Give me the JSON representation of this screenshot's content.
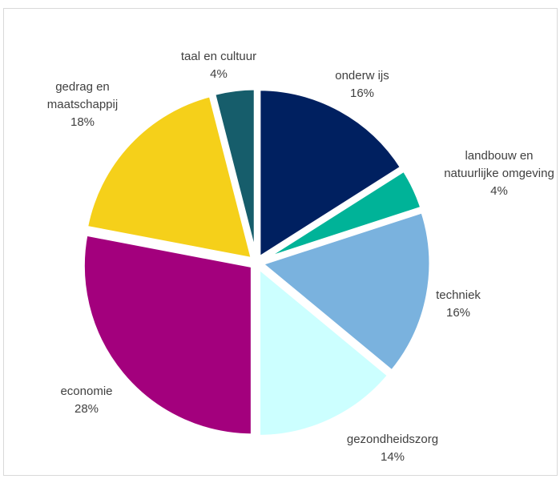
{
  "chart_data": {
    "type": "pie",
    "title": "",
    "slices": [
      {
        "name": "onderw ijs",
        "value": 16,
        "value_label": "16%",
        "color": "#002060"
      },
      {
        "name": "landbouw  en natuurlijke omgeving",
        "name_lines": [
          "landbouw  en",
          "natuurlijke omgeving"
        ],
        "value": 4,
        "value_label": "4%",
        "color": "#00b398"
      },
      {
        "name": "techniek",
        "value": 16,
        "value_label": "16%",
        "color": "#7ab2de"
      },
      {
        "name": "gezondheidszorg",
        "value": 14,
        "value_label": "14%",
        "color": "#ccffff"
      },
      {
        "name": "economie",
        "value": 28,
        "value_label": "28%",
        "color": "#a3007d"
      },
      {
        "name": "gedrag en maatschappij",
        "name_lines": [
          "gedrag en",
          "maatschappij"
        ],
        "value": 18,
        "value_label": "18%",
        "color": "#f5d01a"
      },
      {
        "name": "taal en cultuur",
        "value": 4,
        "value_label": "4%",
        "color": "#165d6b"
      }
    ],
    "legend": "none",
    "labels_outside": true
  }
}
